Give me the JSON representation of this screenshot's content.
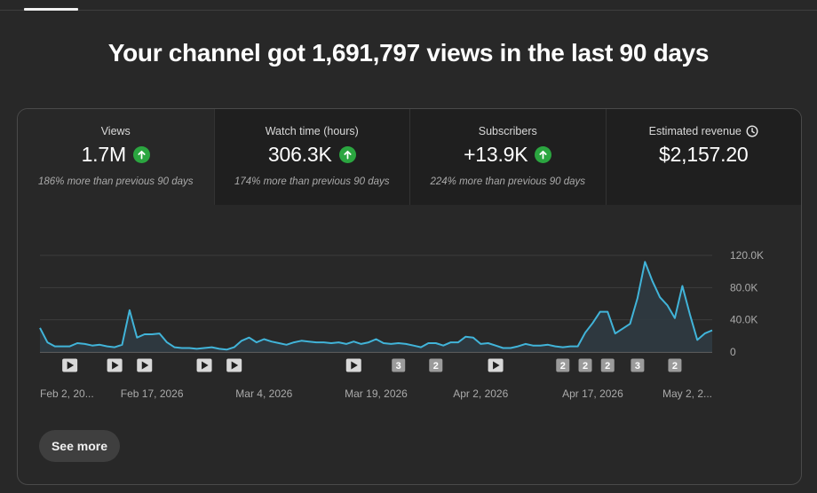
{
  "headline": "Your channel got 1,691,797 views in the last 90 days",
  "metrics": [
    {
      "label": "Views",
      "value": "1.7M",
      "trend": "up",
      "note": "186% more than previous 90 days"
    },
    {
      "label": "Watch time (hours)",
      "value": "306.3K",
      "trend": "up",
      "note": "174% more than previous 90 days"
    },
    {
      "label": "Subscribers",
      "value": "+13.9K",
      "trend": "up",
      "note": "224% more than previous 90 days"
    },
    {
      "label": "Estimated revenue",
      "value": "$2,157.20",
      "trend": "",
      "note": ""
    }
  ],
  "colors": {
    "line": "#41b4d9",
    "up": "#2ba640"
  },
  "chart_data": {
    "type": "area",
    "series": [
      {
        "values": [
          30000,
          12000,
          7000,
          7000,
          7000,
          11000,
          10000,
          8000,
          9000,
          7000,
          6000,
          9000,
          52000,
          18000,
          22000,
          22000,
          23000,
          12000,
          6000,
          5000,
          5000,
          4000,
          5000,
          6000,
          4000,
          3000,
          6000,
          14000,
          18000,
          12000,
          16000,
          13000,
          11000,
          9000,
          12000,
          14000,
          13000,
          12000,
          12000,
          11000,
          12000,
          10000,
          13000,
          10000,
          12000,
          16000,
          11000,
          10000,
          11000,
          10000,
          8000,
          6000,
          11000,
          11000,
          8000,
          12000,
          12000,
          19000,
          18000,
          10000,
          11000,
          8000,
          5000,
          5000,
          7000,
          10000,
          8000,
          8000,
          9000,
          7000,
          6000,
          7000,
          7000,
          24000,
          36000,
          50000,
          50000,
          23000,
          29000,
          35000,
          67000,
          112000,
          88000,
          68000,
          58000,
          42000,
          82000,
          47000,
          15000,
          23000,
          27000
        ]
      }
    ],
    "ylim": [
      0,
      120000
    ],
    "yticks": [
      0,
      40000,
      80000,
      120000
    ],
    "ytick_labels": [
      "0",
      "40.0K",
      "80.0K",
      "120.0K"
    ],
    "xticks": [
      0,
      15,
      30,
      45,
      59,
      74,
      89
    ],
    "xtick_labels": [
      "Feb 2, 20...",
      "Feb 17, 2026",
      "Mar 4, 2026",
      "Mar 19, 2026",
      "Apr 2, 2026",
      "Apr 17, 2026",
      "May 2, 2..."
    ],
    "markers": [
      {
        "day": 4,
        "label": "play"
      },
      {
        "day": 10,
        "label": "play"
      },
      {
        "day": 14,
        "label": "play"
      },
      {
        "day": 22,
        "label": "play"
      },
      {
        "day": 26,
        "label": "play"
      },
      {
        "day": 42,
        "label": "play"
      },
      {
        "day": 48,
        "label": "3"
      },
      {
        "day": 53,
        "label": "2"
      },
      {
        "day": 61,
        "label": "play"
      },
      {
        "day": 70,
        "label": "2"
      },
      {
        "day": 73,
        "label": "2"
      },
      {
        "day": 76,
        "label": "2"
      },
      {
        "day": 80,
        "label": "3"
      },
      {
        "day": 85,
        "label": "2"
      }
    ]
  },
  "see_more_label": "See more"
}
